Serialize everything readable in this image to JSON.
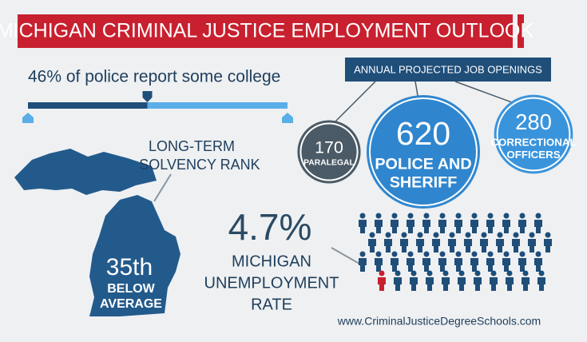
{
  "title": "MICHIGAN CRIMINAL JUSTICE EMPLOYMENT OUTLOOK",
  "college": {
    "text": "46% of police report some college",
    "value": 46
  },
  "openings": {
    "header": "ANNUAL PROJECTED JOB OPENINGS",
    "items": [
      {
        "value": 170,
        "label": [
          "PARALEGAL"
        ]
      },
      {
        "value": 620,
        "label": [
          "POLICE AND",
          "SHERIFF"
        ]
      },
      {
        "value": 280,
        "label": [
          "CORRECTIONAL",
          "OFFICERS"
        ]
      }
    ]
  },
  "solvency": {
    "heading": [
      "LONG-TERM",
      "SOLVENCY RANK"
    ],
    "rank": "35th",
    "rating": [
      "BELOW",
      "AVERAGE"
    ]
  },
  "unemployment": {
    "rate": "4.7%",
    "label": [
      "MICHIGAN",
      "UNEMPLOYMENT",
      "RATE"
    ]
  },
  "url": "www.CriminalJusticeDegreeSchools.com"
}
